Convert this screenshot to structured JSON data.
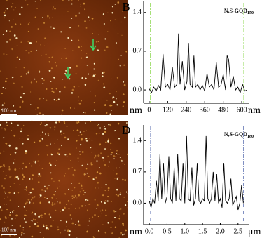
{
  "images": [
    {
      "scale_bar": "100 nm"
    },
    {
      "scale_bar": "100 nm"
    }
  ],
  "chart_data": [
    {
      "type": "line",
      "panel": "B",
      "label": "N,S-GQD",
      "label_sub": "150",
      "y_label": "nm",
      "x_label": "nm",
      "x": [
        0,
        15,
        30,
        45,
        60,
        75,
        90,
        105,
        120,
        135,
        150,
        165,
        180,
        190,
        200,
        215,
        230,
        245,
        255,
        265,
        280,
        290,
        300,
        315,
        330,
        345,
        360,
        375,
        390,
        405,
        420,
        435,
        450,
        465,
        480,
        495,
        505,
        515,
        530,
        545,
        560,
        575,
        590,
        605,
        620,
        635
      ],
      "series": [
        {
          "color": "#000000",
          "values": [
            0.02,
            -0.05,
            0.05,
            -0.02,
            0.08,
            0,
            0.65,
            0.05,
            0.1,
            0,
            0.42,
            0.05,
            0.1,
            1.02,
            0.1,
            0.52,
            0,
            0.15,
            0.85,
            0.1,
            0.05,
            0.62,
            0.05,
            0.1,
            0,
            0.08,
            -0.02,
            0.3,
            0.05,
            0.1,
            0,
            0.5,
            0.05,
            0.08,
            0.28,
            0,
            0.62,
            0.55,
            0.05,
            0.25,
            0,
            0.05,
            -0.05,
            0.1,
            -0.02,
            0
          ]
        }
      ],
      "markers": [
        9,
        614
      ],
      "marker_color": "#7fd23a",
      "xlim": [
        -36,
        645
      ],
      "ylim": [
        -0.24,
        1.6
      ],
      "xticks": [
        0,
        120,
        240,
        360,
        480,
        600
      ],
      "yticks": [
        {
          "value": 0,
          "label": "0.0"
        },
        0.7,
        1.4
      ]
    },
    {
      "type": "line",
      "panel": "D",
      "label": "N,S-GQD",
      "label_sub": "180",
      "y_label": "nm",
      "x_label": "μm",
      "x": [
        0,
        0.05,
        0.1,
        0.15,
        0.2,
        0.25,
        0.3,
        0.35,
        0.4,
        0.45,
        0.5,
        0.55,
        0.6,
        0.65,
        0.7,
        0.75,
        0.8,
        0.85,
        0.9,
        0.95,
        1,
        1.05,
        1.1,
        1.15,
        1.2,
        1.25,
        1.3,
        1.35,
        1.4,
        1.45,
        1.5,
        1.55,
        1.6,
        1.65,
        1.7,
        1.75,
        1.8,
        1.85,
        1.9,
        1.95,
        2,
        2.05,
        2.1,
        2.15,
        2.2,
        2.25,
        2.3,
        2.35,
        2.4,
        2.45,
        2.5,
        2.55,
        2.6,
        2.65
      ],
      "series": [
        {
          "color": "#000000",
          "values": [
            0.05,
            -0.1,
            0.1,
            0,
            0.5,
            0.05,
            1.1,
            0.1,
            0.9,
            0,
            0.15,
            1.05,
            0.1,
            0,
            0.8,
            0.05,
            1.1,
            0.1,
            0.05,
            0.9,
            0,
            1.5,
            0.1,
            0.05,
            0.8,
            -0.05,
            0.1,
            0.9,
            0.05,
            0,
            0.1,
            0.05,
            1.5,
            0.1,
            0,
            0.1,
            0.7,
            0.05,
            0.65,
            0,
            0.1,
            -0.1,
            0.9,
            0.05,
            0,
            0.1,
            0.55,
            -0.05,
            0.05,
            0.15,
            -0.15,
            0,
            0.4,
            0
          ]
        }
      ],
      "markers": [
        0.04,
        2.66
      ],
      "marker_color": "#4a5fa8",
      "xlim": [
        -0.16,
        2.8
      ],
      "ylim": [
        -0.48,
        1.75
      ],
      "xticks": [
        {
          "value": 0,
          "label": "0.0"
        },
        0.5,
        {
          "value": 1,
          "label": "1.0"
        },
        1.5,
        {
          "value": 2,
          "label": "2.0"
        },
        2.5
      ],
      "yticks": [
        {
          "value": 0,
          "label": "0.0"
        },
        0.7,
        1.4
      ]
    }
  ]
}
